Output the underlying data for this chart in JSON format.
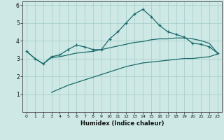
{
  "title": "",
  "xlabel": "Humidex (Indice chaleur)",
  "ylabel": "",
  "background_color": "#cde8e5",
  "grid_color": "#aacfcc",
  "line_color": "#1a6b6b",
  "xlim": [
    -0.5,
    23.5
  ],
  "ylim": [
    0,
    6.2
  ],
  "xticks": [
    0,
    1,
    2,
    3,
    4,
    5,
    6,
    7,
    8,
    9,
    10,
    11,
    12,
    13,
    14,
    15,
    16,
    17,
    18,
    19,
    20,
    21,
    22,
    23
  ],
  "yticks": [
    1,
    2,
    3,
    4,
    5,
    6
  ],
  "line1_x": [
    0,
    1,
    2,
    3,
    4,
    5,
    6,
    7,
    8,
    9,
    10,
    11,
    12,
    13,
    14,
    15,
    16,
    17,
    18,
    19,
    20,
    21,
    22,
    23
  ],
  "line1_y": [
    3.4,
    3.0,
    2.7,
    3.1,
    3.2,
    3.5,
    3.75,
    3.65,
    3.5,
    3.5,
    4.1,
    4.5,
    5.0,
    5.5,
    5.75,
    5.35,
    4.85,
    4.5,
    4.35,
    4.2,
    3.85,
    3.8,
    3.65,
    3.3
  ],
  "line2_x": [
    0,
    1,
    2,
    3,
    4,
    5,
    6,
    7,
    8,
    9,
    10,
    11,
    12,
    13,
    14,
    15,
    16,
    17,
    18,
    19,
    20,
    21,
    22,
    23
  ],
  "line2_y": [
    3.4,
    3.0,
    2.7,
    3.05,
    3.1,
    3.2,
    3.3,
    3.35,
    3.4,
    3.5,
    3.6,
    3.7,
    3.8,
    3.9,
    3.95,
    4.05,
    4.1,
    4.1,
    4.15,
    4.15,
    4.1,
    4.0,
    3.85,
    3.3
  ],
  "line3_x": [
    3,
    4,
    5,
    6,
    7,
    8,
    9,
    10,
    11,
    12,
    13,
    14,
    15,
    16,
    17,
    18,
    19,
    20,
    21,
    22,
    23
  ],
  "line3_y": [
    1.1,
    1.3,
    1.5,
    1.65,
    1.8,
    1.95,
    2.1,
    2.25,
    2.4,
    2.55,
    2.65,
    2.75,
    2.8,
    2.85,
    2.9,
    2.95,
    3.0,
    3.0,
    3.05,
    3.1,
    3.25
  ]
}
